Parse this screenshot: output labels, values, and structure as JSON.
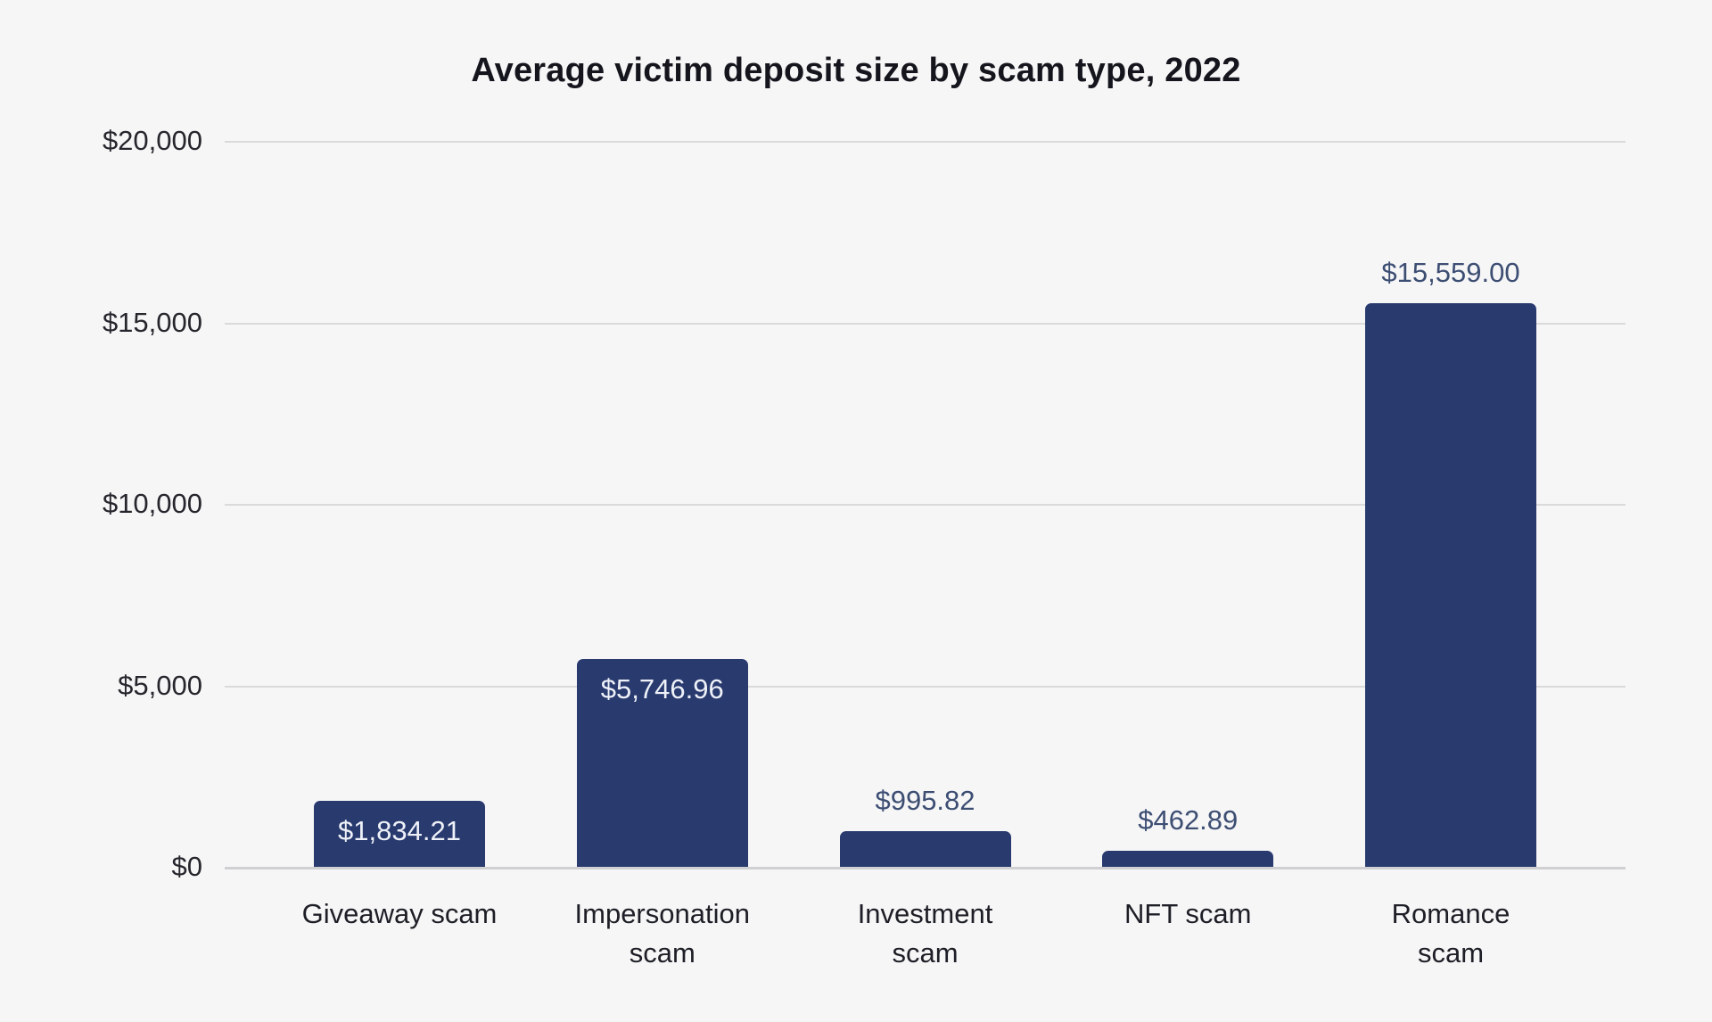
{
  "chart_data": {
    "type": "bar",
    "title": "Average victim deposit size by scam type, 2022",
    "categories": [
      "Giveaway scam",
      "Impersonation scam",
      "Investment scam",
      "NFT scam",
      "Romance scam"
    ],
    "category_lines": [
      [
        "Giveaway scam"
      ],
      [
        "Impersonation",
        "scam"
      ],
      [
        "Investment",
        "scam"
      ],
      [
        "NFT scam"
      ],
      [
        "Romance",
        "scam"
      ]
    ],
    "values": [
      1834.21,
      5746.96,
      995.82,
      462.89,
      15559.0
    ],
    "value_labels": [
      "$1,834.21",
      "$5,746.96",
      "$995.82",
      "$462.89",
      "$15,559.00"
    ],
    "value_label_placement": [
      "inside",
      "inside",
      "above",
      "above",
      "above"
    ],
    "series_name": "Average victim deposit size",
    "xlabel": "",
    "ylabel": "",
    "ylim": [
      0,
      20000
    ],
    "y_ticks": [
      {
        "value": 0,
        "label": "$0"
      },
      {
        "value": 5000,
        "label": "$5,000"
      },
      {
        "value": 10000,
        "label": "$10,000"
      },
      {
        "value": 15000,
        "label": "$15,000"
      },
      {
        "value": 20000,
        "label": "$20,000"
      }
    ],
    "grid": "horizontal",
    "legend": "none",
    "colors": {
      "background": "#f6f6f7",
      "bar_fill": "#283a6e",
      "inside_label": "#eef1f8",
      "above_label": "#3d4e73",
      "axis_tick_text": "#26262d",
      "category_text": "#1e1f26",
      "title_text": "#15151d",
      "gridline": "#dadadb",
      "axis_line": "#d0d0d3"
    }
  }
}
